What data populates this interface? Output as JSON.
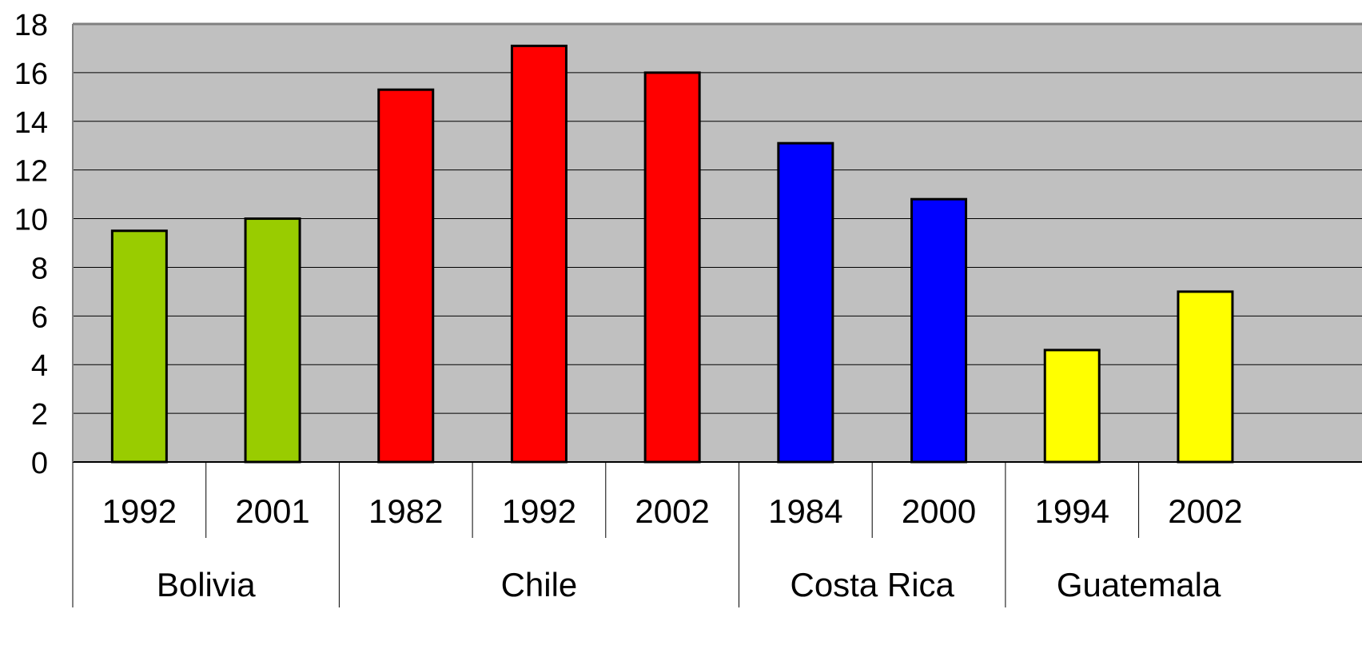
{
  "chart_data": {
    "type": "bar",
    "title": "",
    "xlabel": "",
    "ylabel": "",
    "ylim": [
      0,
      18
    ],
    "yticks": [
      "0",
      "2",
      "4",
      "6",
      "8",
      "10",
      "12",
      "14",
      "16",
      "18"
    ],
    "grid": true,
    "legend": "none",
    "plot_background": "#C0C0C0",
    "groups": [
      {
        "name": "Bolivia",
        "color": "#99CC00",
        "bars": [
          {
            "label": "1992",
            "value": 9.5
          },
          {
            "label": "2001",
            "value": 10.0
          }
        ]
      },
      {
        "name": "Chile",
        "color": "#FF0000",
        "bars": [
          {
            "label": "1982",
            "value": 15.3
          },
          {
            "label": "1992",
            "value": 17.1
          },
          {
            "label": "2002",
            "value": 16.0
          }
        ]
      },
      {
        "name": "Costa Rica",
        "color": "#0000FF",
        "bars": [
          {
            "label": "1984",
            "value": 13.1
          },
          {
            "label": "2000",
            "value": 10.8
          }
        ]
      },
      {
        "name": "Guatemala",
        "color": "#FFFF00",
        "bars": [
          {
            "label": "1994",
            "value": 4.6
          },
          {
            "label": "2002",
            "value": 7.0
          }
        ]
      }
    ]
  }
}
